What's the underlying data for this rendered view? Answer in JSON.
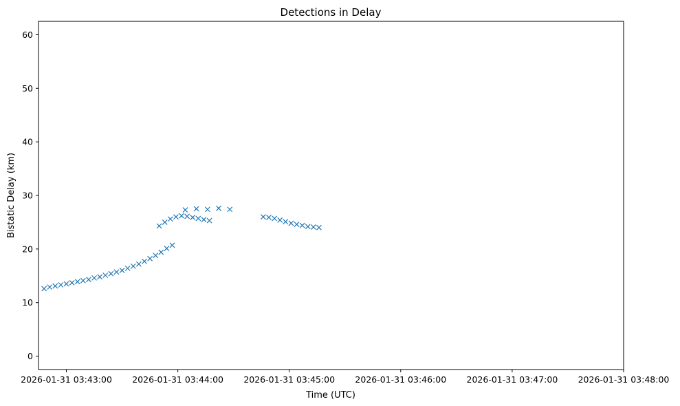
{
  "chart_data": {
    "type": "scatter",
    "title": "Detections in Delay",
    "xlabel": "Time (UTC)",
    "ylabel": "Bistatic Delay (km)",
    "x_tick_labels": [
      "2026-01-31 03:43:00",
      "2026-01-31 03:44:00",
      "2026-01-31 03:45:00",
      "2026-01-31 03:46:00",
      "2026-01-31 03:47:00",
      "2026-01-31 03:48:00"
    ],
    "xlim": [
      "2026-01-31 03:42:45",
      "2026-01-31 03:48:00"
    ],
    "xticks": [
      "2026-01-31 03:43:00",
      "2026-01-31 03:44:00",
      "2026-01-31 03:45:00",
      "2026-01-31 03:46:00",
      "2026-01-31 03:47:00",
      "2026-01-31 03:48:00"
    ],
    "y_tick_labels": [
      "0",
      "10",
      "20",
      "30",
      "40",
      "50",
      "60"
    ],
    "ylim": [
      -2.5,
      62.5
    ],
    "yticks": [
      0,
      10,
      20,
      30,
      40,
      50,
      60
    ],
    "grid": false,
    "marker": "x",
    "color": "#1f77b4",
    "series": [
      {
        "points": [
          [
            "2026-01-31 03:42:48",
            12.6
          ],
          [
            "2026-01-31 03:42:51",
            12.9
          ],
          [
            "2026-01-31 03:42:54",
            13.1
          ],
          [
            "2026-01-31 03:42:57",
            13.3
          ],
          [
            "2026-01-31 03:43:00",
            13.5
          ],
          [
            "2026-01-31 03:43:03",
            13.7
          ],
          [
            "2026-01-31 03:43:06",
            13.9
          ],
          [
            "2026-01-31 03:43:09",
            14.1
          ],
          [
            "2026-01-31 03:43:12",
            14.3
          ],
          [
            "2026-01-31 03:43:15",
            14.6
          ],
          [
            "2026-01-31 03:43:18",
            14.8
          ],
          [
            "2026-01-31 03:43:21",
            15.1
          ],
          [
            "2026-01-31 03:43:24",
            15.4
          ],
          [
            "2026-01-31 03:43:27",
            15.7
          ],
          [
            "2026-01-31 03:43:30",
            16.0
          ],
          [
            "2026-01-31 03:43:33",
            16.4
          ],
          [
            "2026-01-31 03:43:36",
            16.8
          ],
          [
            "2026-01-31 03:43:39",
            17.2
          ],
          [
            "2026-01-31 03:43:42",
            17.7
          ],
          [
            "2026-01-31 03:43:45",
            18.2
          ],
          [
            "2026-01-31 03:43:48",
            18.8
          ],
          [
            "2026-01-31 03:43:51",
            19.4
          ],
          [
            "2026-01-31 03:43:54",
            20.1
          ],
          [
            "2026-01-31 03:43:57",
            20.7
          ],
          [
            "2026-01-31 03:43:50",
            24.3
          ],
          [
            "2026-01-31 03:43:53",
            25.0
          ],
          [
            "2026-01-31 03:43:56",
            25.6
          ],
          [
            "2026-01-31 03:43:59",
            26.0
          ],
          [
            "2026-01-31 03:44:02",
            26.2
          ],
          [
            "2026-01-31 03:44:05",
            26.1
          ],
          [
            "2026-01-31 03:44:08",
            25.9
          ],
          [
            "2026-01-31 03:44:11",
            25.7
          ],
          [
            "2026-01-31 03:44:14",
            25.5
          ],
          [
            "2026-01-31 03:44:17",
            25.3
          ],
          [
            "2026-01-31 03:44:04",
            27.3
          ],
          [
            "2026-01-31 03:44:10",
            27.5
          ],
          [
            "2026-01-31 03:44:16",
            27.4
          ],
          [
            "2026-01-31 03:44:22",
            27.6
          ],
          [
            "2026-01-31 03:44:28",
            27.4
          ],
          [
            "2026-01-31 03:44:46",
            26.0
          ],
          [
            "2026-01-31 03:44:49",
            25.9
          ],
          [
            "2026-01-31 03:44:52",
            25.7
          ],
          [
            "2026-01-31 03:44:55",
            25.4
          ],
          [
            "2026-01-31 03:44:58",
            25.1
          ],
          [
            "2026-01-31 03:45:01",
            24.8
          ],
          [
            "2026-01-31 03:45:04",
            24.6
          ],
          [
            "2026-01-31 03:45:07",
            24.4
          ],
          [
            "2026-01-31 03:45:10",
            24.2
          ],
          [
            "2026-01-31 03:45:13",
            24.1
          ],
          [
            "2026-01-31 03:45:16",
            24.0
          ]
        ]
      }
    ]
  }
}
